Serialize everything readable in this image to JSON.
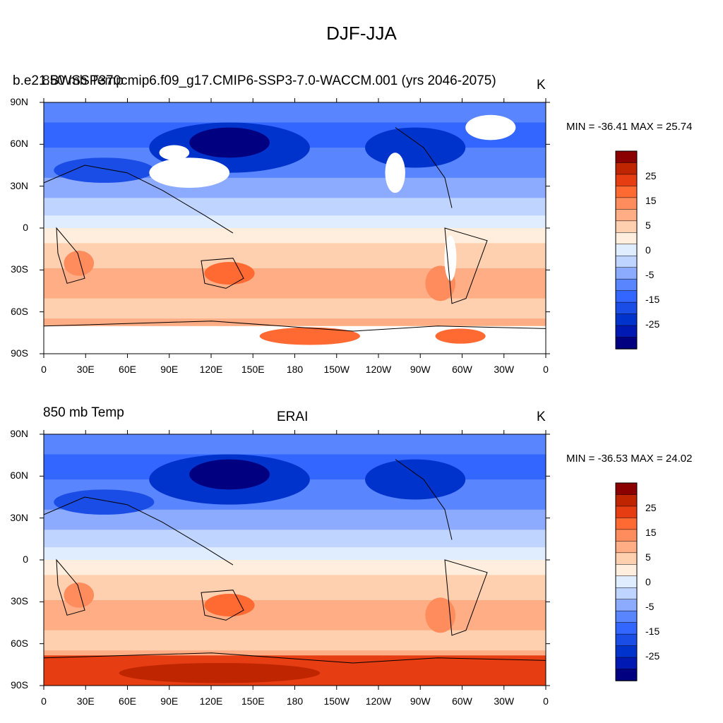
{
  "title": "DJF-JJA",
  "colors": {
    "levels": [
      "#000080",
      "#0019b3",
      "#0033cc",
      "#1a4de6",
      "#3366ff",
      "#5985ff",
      "#8cabff",
      "#bfd4ff",
      "#e0ecff",
      "#ffeedd",
      "#ffd0b0",
      "#ffad85",
      "#ff8c5c",
      "#ff6a33",
      "#e63d12",
      "#bf2600",
      "#8b0000"
    ],
    "land_outline": "#000000",
    "missing": "#ffffff"
  },
  "panels": [
    {
      "left_label": "b.e21.BWSSP370cmip6.f09_g17.CMIP6-SSP3-7.0-WACCM.001 (yrs 2046-2075)",
      "left_label_overlap": "850 mb Temp",
      "center_label": "",
      "unit": "K",
      "minmax": "MIN = -36.41 MAX =  25.74"
    },
    {
      "left_label": "850 mb Temp",
      "center_label": "ERAI",
      "unit": "K",
      "minmax": "MIN = -36.53 MAX =  24.02"
    }
  ],
  "axes": {
    "lat_ticks": [
      "90N",
      "60N",
      "30N",
      "0",
      "30S",
      "60S",
      "90S"
    ],
    "lon_ticks": [
      "0",
      "30E",
      "60E",
      "90E",
      "120E",
      "150E",
      "180",
      "150W",
      "120W",
      "90W",
      "60W",
      "30W",
      "0"
    ]
  },
  "colorbar": {
    "labels": [
      "25",
      "15",
      "5",
      "0",
      "-5",
      "-15",
      "-25"
    ]
  },
  "chart_data": [
    {
      "type": "heatmap",
      "title": "DJF-JJA",
      "variable": "850 mb Temp",
      "case": "b.e21.BWSSP370cmip6.f09_g17.CMIP6-SSP3-7.0-WACCM.001 (yrs 2046-2075)",
      "units": "K",
      "min": -36.41,
      "max": 25.74,
      "contour_levels": [
        -30,
        -25,
        -20,
        -15,
        -10,
        -5,
        -2,
        0,
        2,
        5,
        10,
        15,
        20,
        25,
        30
      ],
      "x_range": [
        0,
        360
      ],
      "y_range": [
        -90,
        90
      ]
    },
    {
      "type": "heatmap",
      "title": "DJF-JJA",
      "variable": "850 mb Temp",
      "case": "ERAI",
      "units": "K",
      "min": -36.53,
      "max": 24.02,
      "contour_levels": [
        -30,
        -25,
        -20,
        -15,
        -10,
        -5,
        -2,
        0,
        2,
        5,
        10,
        15,
        20,
        25,
        30
      ],
      "x_range": [
        0,
        360
      ],
      "y_range": [
        -90,
        90
      ]
    }
  ]
}
